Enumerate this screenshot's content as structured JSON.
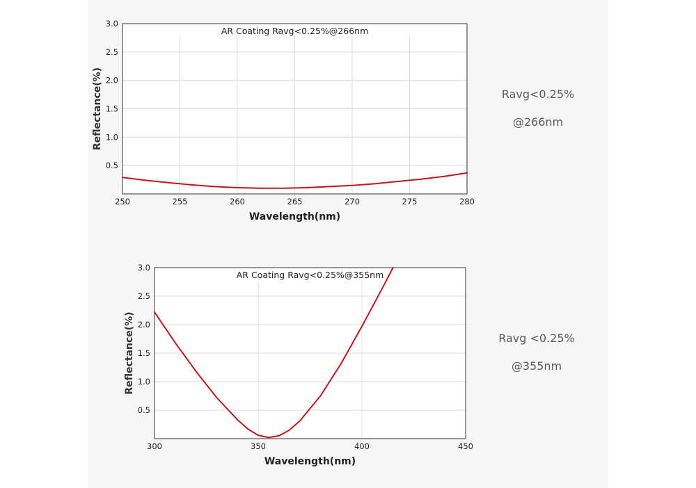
{
  "chart_data": [
    {
      "type": "line",
      "title": "AR Coating Ravg<0.25%@266nm",
      "xlabel": "Wavelength(nm)",
      "ylabel": "Reflectance(%)",
      "xlim": [
        250,
        280
      ],
      "ylim": [
        0,
        3.0
      ],
      "xticks": [
        250,
        255,
        260,
        265,
        270,
        275,
        280
      ],
      "yticks": [
        0.5,
        1.0,
        1.5,
        2.0,
        2.5,
        3.0
      ],
      "grid": true,
      "series": [
        {
          "color": "#c0161d",
          "x": [
            250,
            252,
            254,
            256,
            258,
            260,
            262,
            264,
            266,
            268,
            270,
            272,
            274,
            276,
            278,
            280
          ],
          "y": [
            0.29,
            0.24,
            0.2,
            0.16,
            0.13,
            0.11,
            0.1,
            0.1,
            0.11,
            0.13,
            0.15,
            0.18,
            0.22,
            0.26,
            0.31,
            0.37
          ]
        }
      ]
    },
    {
      "type": "line",
      "title": "AR Coating Ravg<0.25%@355nm",
      "xlabel": "Wavelength(nm)",
      "ylabel": "Reflectance(%)",
      "xlim": [
        300,
        450
      ],
      "ylim": [
        0,
        3.0
      ],
      "xticks": [
        300,
        350,
        400,
        450
      ],
      "yticks": [
        0.5,
        1.0,
        1.5,
        2.0,
        2.5,
        3.0
      ],
      "grid": true,
      "series": [
        {
          "color": "#c0161d",
          "x": [
            300,
            310,
            320,
            330,
            340,
            345,
            350,
            355,
            360,
            365,
            370,
            380,
            390,
            400,
            410,
            415
          ],
          "y": [
            2.22,
            1.68,
            1.18,
            0.72,
            0.33,
            0.17,
            0.06,
            0.02,
            0.05,
            0.15,
            0.31,
            0.75,
            1.32,
            1.97,
            2.65,
            3.0
          ]
        }
      ]
    }
  ],
  "side_notes": [
    {
      "line1": "Ravg<0.25%",
      "line2": "@266nm"
    },
    {
      "line1": "Ravg <0.25%",
      "line2": "@355nm"
    }
  ]
}
